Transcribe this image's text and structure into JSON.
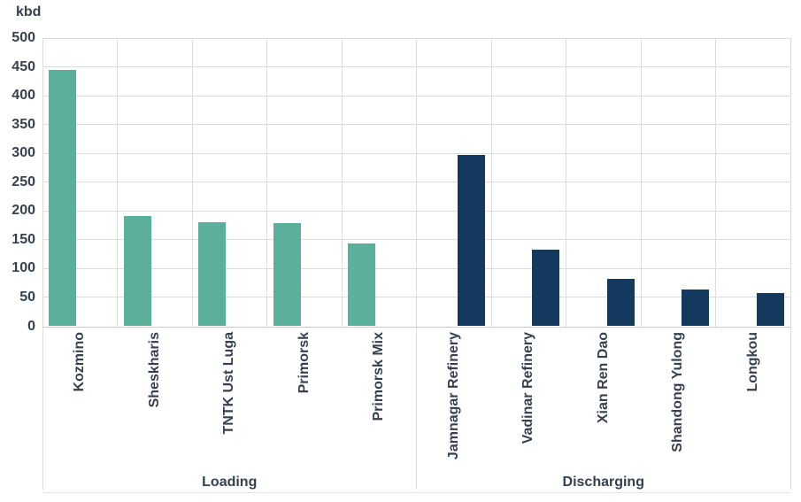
{
  "chart_data": {
    "type": "bar",
    "title": "",
    "unit_label": "kbd",
    "ylabel": "kbd",
    "ylim": [
      0,
      500
    ],
    "ytick_interval": 50,
    "yticks": [
      "0",
      "50",
      "100",
      "150",
      "200",
      "250",
      "300",
      "350",
      "400",
      "450",
      "500"
    ],
    "grid": "on",
    "legend": "none",
    "group_axis_labels": [
      "Loading",
      "Discharging"
    ],
    "groups": [
      {
        "label": "Loading",
        "color": "#5AB09A",
        "categories": [
          "Kozmino",
          "Sheskharis",
          "TNTK Ust Luga",
          "Primorsk",
          "Primorsk Mix"
        ],
        "values": [
          445,
          192,
          180,
          179,
          143
        ]
      },
      {
        "label": "Discharging",
        "color": "#14395E",
        "categories": [
          "Jamnagar Refinery",
          "Vadinar Refinery",
          "Xian Ren Dao",
          "Shandong Yulong",
          "Longkou"
        ],
        "values": [
          297,
          133,
          82,
          64,
          57
        ]
      }
    ]
  },
  "colors": {
    "background": "#ffffff",
    "text": "#36404E",
    "gridline": "#DCDCDC",
    "axis_line": "#C9C9C9"
  }
}
